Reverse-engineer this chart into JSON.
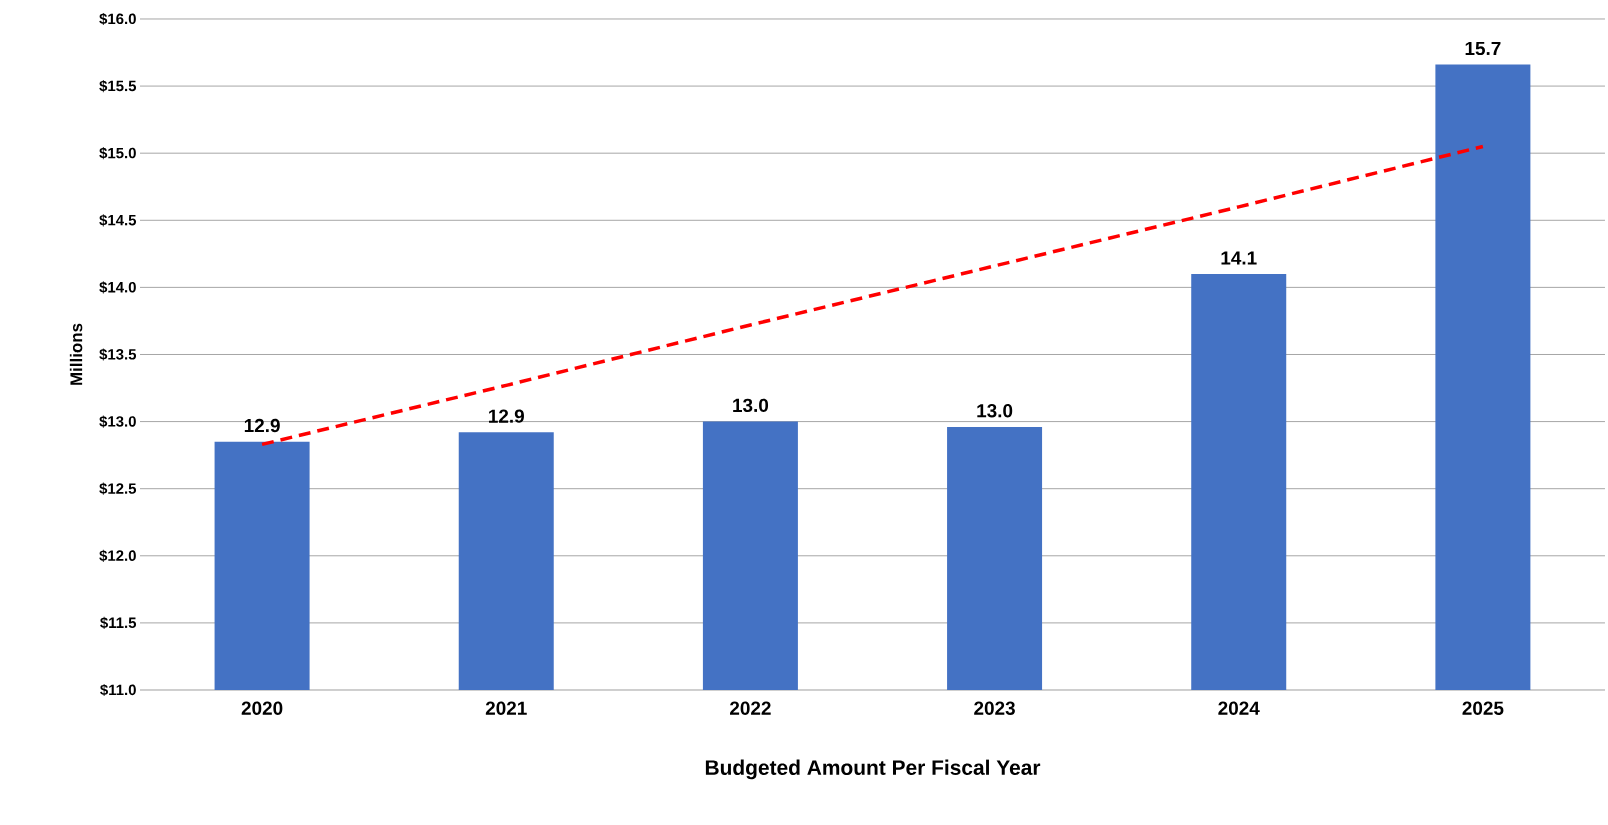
{
  "chart_data": {
    "type": "bar",
    "xlabel": "Budgeted Amount Per Fiscal Year",
    "ylabel": "Millions",
    "categories": [
      "2020",
      "2021",
      "2022",
      "2023",
      "2024",
      "2025"
    ],
    "series": [
      {
        "color": "#4472c4",
        "values": [
          12.85,
          12.92,
          13.0,
          12.96,
          14.1,
          15.66
        ],
        "value_labels": [
          "12.9",
          "12.9",
          "13.0",
          "13.0",
          "14.1",
          "15.7"
        ]
      },
      {
        "type": "line",
        "color": "#ff0000",
        "line_style": "dashed",
        "values": [
          12.83,
          13.27,
          13.72,
          14.16,
          14.6,
          15.05
        ]
      }
    ],
    "ylim": [
      11,
      16
    ],
    "yticks": [
      {
        "value": 11,
        "label": "$11.0"
      },
      {
        "value": 11.5,
        "label": "$11.5"
      },
      {
        "value": 12,
        "label": "$12.0"
      },
      {
        "value": 12.5,
        "label": "$12.5"
      },
      {
        "value": 13,
        "label": "$13.0"
      },
      {
        "value": 13.5,
        "label": "$13.5"
      },
      {
        "value": 14,
        "label": "$14.0"
      },
      {
        "value": 14.5,
        "label": "$14.5"
      },
      {
        "value": 15,
        "label": "$15.0"
      },
      {
        "value": 15.5,
        "label": "$15.5"
      },
      {
        "value": 16,
        "label": "$16.0"
      }
    ],
    "grid": "y"
  }
}
